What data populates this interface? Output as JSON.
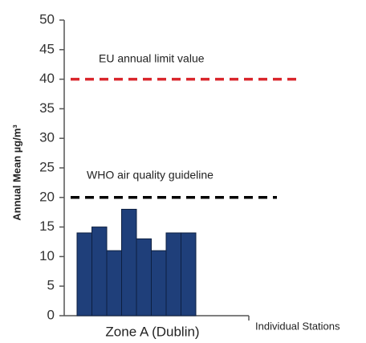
{
  "chart_data": {
    "type": "bar",
    "ylabel": "Annual Mean µg/m³",
    "xlabel": "Zone A (Dublin)",
    "annotation": "Individual Stations",
    "categories": [
      null,
      null,
      null,
      null,
      null,
      null,
      null,
      null
    ],
    "values": [
      14,
      15,
      11,
      18,
      13,
      11,
      14,
      14
    ],
    "color": "#1f3f7a",
    "ylim": [
      0,
      50
    ],
    "yticks": [
      0,
      5,
      10,
      15,
      20,
      25,
      30,
      35,
      40,
      45,
      50
    ],
    "grid": false,
    "reference_lines": [
      {
        "value": 40,
        "label": "EU annual  limit value",
        "color": "#d9262c"
      },
      {
        "value": 20,
        "label": "WHO air quality guideline",
        "color": "#000000"
      }
    ]
  }
}
